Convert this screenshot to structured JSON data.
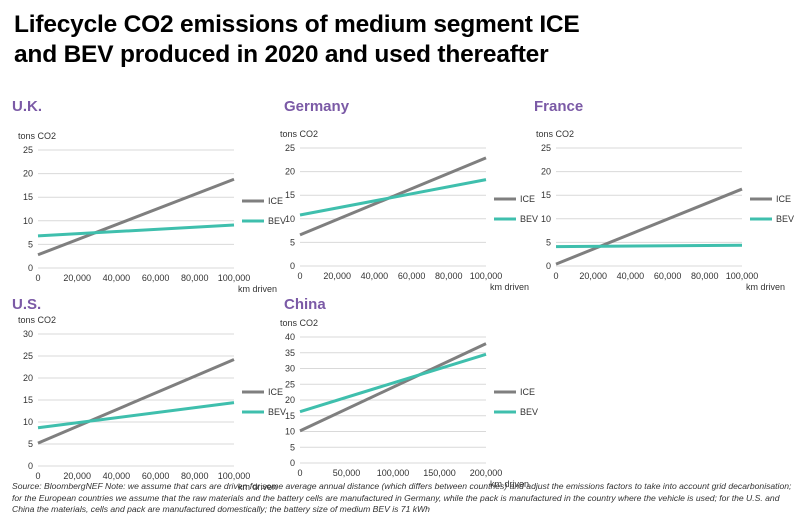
{
  "title_lines": [
    "Lifecycle CO2 emissions of medium segment ICE",
    "and BEV produced in 2020 and used thereafter"
  ],
  "source_note": "Source: BloombergNEF Note: we assume that cars are driven for some average annual distance (which differs between countries) and adjust the emissions factors to take into account grid decarbonisation; for the European countries we assume that the raw materials and the battery cells are manufactured in Germany, while the pack is manufactured in the country where the vehicle is used; for the U.S. and China the materials, cells and pack are manufactured domestically; the battery size of medium BEV is 71 kWh",
  "colors": {
    "ICE": "#7f7f7f",
    "BEV": "#3fbfad",
    "region_title": "#7b5aa6",
    "grid": "#d9d9d9"
  },
  "chart_data": [
    {
      "type": "line",
      "region": "U.K.",
      "ylabel": "tons CO2",
      "xlabel": "km driven",
      "x": [
        0,
        100000
      ],
      "xlim": [
        0,
        100000
      ],
      "xticks": [
        0,
        20000,
        40000,
        60000,
        80000,
        100000
      ],
      "xtick_labels": [
        "0",
        "20,000",
        "40,000",
        "60,000",
        "80,000",
        "100,000"
      ],
      "ylim": [
        0,
        25
      ],
      "yticks": [
        0,
        5,
        10,
        15,
        20,
        25
      ],
      "grid": true,
      "legend": "right",
      "series": [
        {
          "name": "ICE",
          "values": [
            2.8,
            18.8
          ]
        },
        {
          "name": "BEV",
          "values": [
            6.8,
            9.1
          ]
        }
      ]
    },
    {
      "type": "line",
      "region": "Germany",
      "ylabel": "tons CO2",
      "xlabel": "km driven",
      "x": [
        0,
        100000
      ],
      "xlim": [
        0,
        100000
      ],
      "xticks": [
        0,
        20000,
        40000,
        60000,
        80000,
        100000
      ],
      "xtick_labels": [
        "0",
        "20,000",
        "40,000",
        "60,000",
        "80,000",
        "100,000"
      ],
      "ylim": [
        0,
        25
      ],
      "yticks": [
        0,
        5,
        10,
        15,
        20,
        25
      ],
      "grid": true,
      "legend": "right",
      "series": [
        {
          "name": "ICE",
          "values": [
            6.6,
            22.9
          ]
        },
        {
          "name": "BEV",
          "values": [
            10.8,
            18.3
          ]
        }
      ]
    },
    {
      "type": "line",
      "region": "France",
      "ylabel": "tons CO2",
      "xlabel": "km driven",
      "x": [
        0,
        100000
      ],
      "xlim": [
        0,
        100000
      ],
      "xticks": [
        0,
        20000,
        40000,
        60000,
        80000,
        100000
      ],
      "xtick_labels": [
        "0",
        "20,000",
        "40,000",
        "60,000",
        "80,000",
        "100,000"
      ],
      "ylim": [
        0,
        25
      ],
      "yticks": [
        0,
        5,
        10,
        15,
        20,
        25
      ],
      "grid": true,
      "legend": "right",
      "series": [
        {
          "name": "ICE",
          "values": [
            0.4,
            16.3
          ]
        },
        {
          "name": "BEV",
          "values": [
            4.1,
            4.4
          ]
        }
      ]
    },
    {
      "type": "line",
      "region": "U.S.",
      "ylabel": "tons CO2",
      "xlabel": "km driven",
      "x": [
        0,
        100000
      ],
      "xlim": [
        0,
        100000
      ],
      "xticks": [
        0,
        20000,
        40000,
        60000,
        80000,
        100000
      ],
      "xtick_labels": [
        "0",
        "20,000",
        "40,000",
        "60,000",
        "80,000",
        "100,000"
      ],
      "ylim": [
        0,
        30
      ],
      "yticks": [
        0,
        5,
        10,
        15,
        20,
        25,
        30
      ],
      "grid": true,
      "legend": "right",
      "series": [
        {
          "name": "ICE",
          "values": [
            5.2,
            24.2
          ]
        },
        {
          "name": "BEV",
          "values": [
            8.7,
            14.4
          ]
        }
      ]
    },
    {
      "type": "line",
      "region": "China",
      "ylabel": "tons CO2",
      "xlabel": "km driven",
      "x": [
        0,
        200000
      ],
      "xlim": [
        0,
        200000
      ],
      "xticks": [
        0,
        50000,
        100000,
        150000,
        200000
      ],
      "xtick_labels": [
        "0",
        "50,000",
        "100,000",
        "150,000",
        "200,000"
      ],
      "ylim": [
        0,
        40
      ],
      "yticks": [
        0,
        5,
        10,
        15,
        20,
        25,
        30,
        35,
        40
      ],
      "grid": true,
      "legend": "right",
      "series": [
        {
          "name": "ICE",
          "values": [
            10.2,
            37.9
          ]
        },
        {
          "name": "BEV",
          "values": [
            16.3,
            34.5
          ]
        }
      ]
    }
  ]
}
